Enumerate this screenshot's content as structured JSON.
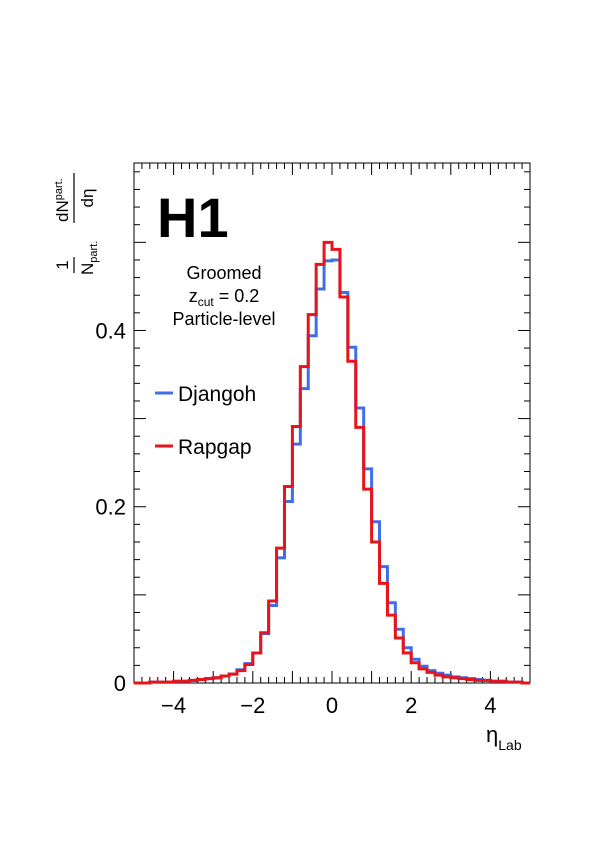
{
  "chart_data": {
    "type": "step",
    "logo": "H1",
    "annotation": [
      "Groomed",
      "z",
      "cut",
      " = 0.2",
      "Particle-level"
    ],
    "xlabel": {
      "main": "η",
      "sub": "Lab"
    },
    "ylabel": {
      "one": "1",
      "N": "N",
      "part": "part.",
      "dN": "dN",
      "deta": "dη"
    },
    "xlim": [
      -5,
      5
    ],
    "ylim": [
      0,
      0.59
    ],
    "xticks": [
      -4,
      -2,
      0,
      2,
      4
    ],
    "xtick_labels": [
      "−4",
      "−2",
      "0",
      "2",
      "4"
    ],
    "yticks": [
      0,
      0.2,
      0.4
    ],
    "ytick_labels": [
      "0",
      "0.2",
      "0.4"
    ],
    "bin_edges": [
      -5.0,
      -4.8,
      -4.6,
      -4.4,
      -4.2,
      -4.0,
      -3.8,
      -3.6,
      -3.4,
      -3.2,
      -3.0,
      -2.8,
      -2.6,
      -2.4,
      -2.2,
      -2.0,
      -1.8,
      -1.6,
      -1.4,
      -1.2,
      -1.0,
      -0.8,
      -0.6,
      -0.4,
      -0.2,
      0.0,
      0.2,
      0.4,
      0.6,
      0.8,
      1.0,
      1.2,
      1.4,
      1.6,
      1.8,
      2.0,
      2.2,
      2.4,
      2.6,
      2.8,
      3.0,
      3.2,
      3.4,
      3.6,
      3.8,
      4.0,
      4.2,
      4.4,
      4.6,
      4.8,
      5.0
    ],
    "series": [
      {
        "name": "Djangoh",
        "color": "#3f6fe8",
        "values": [
          0.0,
          0.0,
          0.001,
          0.001,
          0.001,
          0.002,
          0.002,
          0.003,
          0.004,
          0.005,
          0.006,
          0.008,
          0.01,
          0.015,
          0.022,
          0.034,
          0.056,
          0.088,
          0.142,
          0.206,
          0.271,
          0.334,
          0.394,
          0.447,
          0.479,
          0.48,
          0.443,
          0.381,
          0.312,
          0.243,
          0.183,
          0.132,
          0.091,
          0.061,
          0.04,
          0.027,
          0.019,
          0.014,
          0.011,
          0.009,
          0.007,
          0.006,
          0.005,
          0.004,
          0.003,
          0.002,
          0.002,
          0.001,
          0.001,
          0.0
        ]
      },
      {
        "name": "Rapgap",
        "color": "#e8141a",
        "values": [
          0.0,
          0.0,
          0.001,
          0.001,
          0.001,
          0.002,
          0.002,
          0.003,
          0.004,
          0.005,
          0.006,
          0.008,
          0.01,
          0.014,
          0.021,
          0.034,
          0.057,
          0.093,
          0.153,
          0.223,
          0.291,
          0.359,
          0.418,
          0.475,
          0.5,
          0.492,
          0.438,
          0.365,
          0.29,
          0.22,
          0.16,
          0.113,
          0.077,
          0.051,
          0.034,
          0.023,
          0.016,
          0.012,
          0.009,
          0.007,
          0.006,
          0.005,
          0.004,
          0.003,
          0.003,
          0.002,
          0.002,
          0.001,
          0.001,
          0.0
        ]
      }
    ],
    "legend_position": "left"
  }
}
